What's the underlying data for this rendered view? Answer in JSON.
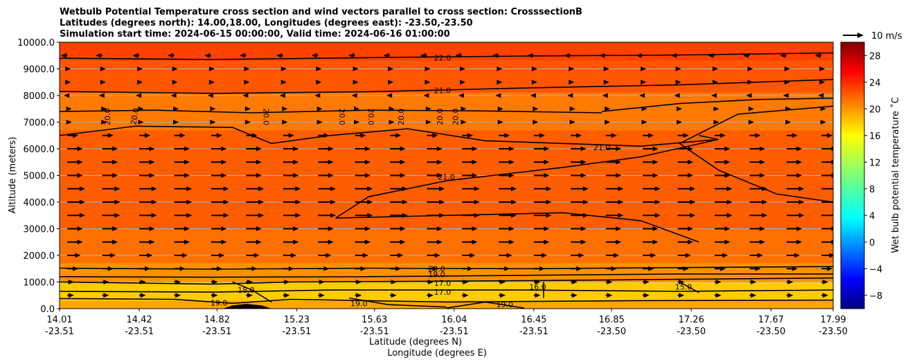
{
  "chart_data": {
    "type": "heatmap",
    "title_lines": [
      "Wetbulb Potential Temperature cross section and wind vectors parallel to cross section: CrosssectionB",
      "Latitudes (degrees north): 14.00,18.00, Longitudes (degrees east): -23.50,-23.50",
      "Simulation start time: 2024-06-15 00:00:00, Valid time: 2024-06-16 01:00:00"
    ],
    "xlabel": "Latitude (degrees N)",
    "xlabel2": "Longitude (degrees E)",
    "ylabel": "Altitude (meters)",
    "xlim": [
      14.01,
      17.99
    ],
    "ylim": [
      0,
      10000
    ],
    "x_ticks": [
      {
        "lat": "14.01",
        "lon": "-23.51",
        "value": 14.01
      },
      {
        "lat": "14.42",
        "lon": "-23.51",
        "value": 14.42
      },
      {
        "lat": "14.82",
        "lon": "-23.51",
        "value": 14.82
      },
      {
        "lat": "15.23",
        "lon": "-23.51",
        "value": 15.23
      },
      {
        "lat": "15.63",
        "lon": "-23.51",
        "value": 15.63
      },
      {
        "lat": "16.04",
        "lon": "-23.51",
        "value": 16.04
      },
      {
        "lat": "16.45",
        "lon": "-23.51",
        "value": 16.45
      },
      {
        "lat": "16.85",
        "lon": "-23.50",
        "value": 16.85
      },
      {
        "lat": "17.26",
        "lon": "-23.50",
        "value": 17.26
      },
      {
        "lat": "17.67",
        "lon": "-23.50",
        "value": 17.67
      },
      {
        "lat": "17.99",
        "lon": "-23.50",
        "value": 17.99
      }
    ],
    "y_ticks": [
      {
        "label": "0.0",
        "value": 0
      },
      {
        "label": "1000.0",
        "value": 1000
      },
      {
        "label": "2000.0",
        "value": 2000
      },
      {
        "label": "3000.0",
        "value": 3000
      },
      {
        "label": "4000.0",
        "value": 4000
      },
      {
        "label": "5000.0",
        "value": 5000
      },
      {
        "label": "6000.0",
        "value": 6000
      },
      {
        "label": "7000.0",
        "value": 7000
      },
      {
        "label": "8000.0",
        "value": 8000
      },
      {
        "label": "9000.0",
        "value": 9000
      },
      {
        "label": "10000.0",
        "value": 10000
      }
    ],
    "grid": "horizontal",
    "colorbar": {
      "label": "Wet bulb potential temperature ˚C",
      "range": [
        -10,
        30
      ],
      "colormap": "jet",
      "ticks": [
        {
          "label": "−8",
          "value": -8
        },
        {
          "label": "−4",
          "value": -4
        },
        {
          "label": "0",
          "value": 0
        },
        {
          "label": "4",
          "value": 4
        },
        {
          "label": "8",
          "value": 8
        },
        {
          "label": "12",
          "value": 12
        },
        {
          "label": "16",
          "value": 16
        },
        {
          "label": "20",
          "value": 20
        },
        {
          "label": "24",
          "value": 24
        },
        {
          "label": "28",
          "value": 28
        }
      ]
    },
    "quiver_key": {
      "label": "10 m/s",
      "speed": 10
    },
    "field_bands": [
      {
        "alt": [
          0,
          300
        ],
        "value": 18.5
      },
      {
        "alt": [
          300,
          1000
        ],
        "value": 17.0
      },
      {
        "alt": [
          1000,
          1700
        ],
        "value": 19.3
      },
      {
        "alt": [
          1700,
          3000
        ],
        "value": 20.6
      },
      {
        "alt": [
          3000,
          6700
        ],
        "value": 21.3
      },
      {
        "alt": [
          6700,
          8100
        ],
        "value": 20.2
      },
      {
        "alt": [
          8100,
          9300
        ],
        "value": 21.6
      },
      {
        "alt": [
          9300,
          10000
        ],
        "value": 22.4
      }
    ],
    "contours": [
      {
        "level": "22.0",
        "points": [
          [
            14.01,
            9400
          ],
          [
            14.8,
            9350
          ],
          [
            15.6,
            9420
          ],
          [
            16.4,
            9480
          ],
          [
            17.2,
            9520
          ],
          [
            17.99,
            9600
          ]
        ],
        "label_at": [
          15.98,
          9420
        ]
      },
      {
        "level": "21.0",
        "points": [
          [
            14.01,
            8150
          ],
          [
            14.8,
            8080
          ],
          [
            15.6,
            8140
          ],
          [
            16.4,
            8280
          ],
          [
            17.2,
            8400
          ],
          [
            17.99,
            8600
          ]
        ],
        "label_at": [
          15.98,
          8200
        ]
      },
      {
        "level": "20.0",
        "points": [
          [
            14.01,
            7400
          ],
          [
            14.5,
            7450
          ],
          [
            15.0,
            7350
          ],
          [
            15.6,
            7450
          ],
          [
            16.2,
            7420
          ],
          [
            16.8,
            7350
          ]
        ],
        "label_at": null
      },
      {
        "level": "20.0",
        "points": [
          [
            14.01,
            6500
          ],
          [
            14.4,
            6850
          ],
          [
            14.9,
            6800
          ],
          [
            15.1,
            6200
          ],
          [
            15.4,
            6500
          ],
          [
            15.8,
            6750
          ],
          [
            16.2,
            6300
          ],
          [
            16.6,
            6200
          ],
          [
            17.0,
            6100
          ],
          [
            17.4,
            6350
          ]
        ],
        "label_at": null
      },
      {
        "level": "21.0",
        "points": [
          [
            15.43,
            3400
          ],
          [
            15.6,
            4200
          ],
          [
            16.0,
            4800
          ],
          [
            16.6,
            5300
          ],
          [
            17.0,
            5700
          ],
          [
            17.4,
            6350
          ],
          [
            17.3,
            6500
          ]
        ],
        "label_at": [
          16.8,
          6050
        ]
      },
      {
        "level": "21.0",
        "points": [
          [
            15.43,
            3400
          ],
          [
            16.0,
            3500
          ],
          [
            16.6,
            3600
          ],
          [
            17.0,
            3300
          ],
          [
            17.3,
            2500
          ]
        ],
        "label_at": [
          16.0,
          4950
        ]
      },
      {
        "level": "20.0",
        "points": [
          [
            16.8,
            7400
          ],
          [
            17.2,
            7700
          ],
          [
            17.6,
            7850
          ],
          [
            17.99,
            7900
          ]
        ],
        "label_at": null
      },
      {
        "level": "20.0",
        "points": [
          [
            17.99,
            4000
          ],
          [
            17.7,
            4300
          ],
          [
            17.4,
            5200
          ],
          [
            17.2,
            6200
          ],
          [
            17.5,
            7300
          ],
          [
            17.99,
            7600
          ]
        ],
        "label_at": null
      },
      {
        "level": "20.0",
        "points": [
          [
            14.01,
            1520
          ],
          [
            14.8,
            1480
          ],
          [
            15.6,
            1520
          ],
          [
            16.4,
            1500
          ],
          [
            17.2,
            1540
          ],
          [
            17.99,
            1580
          ]
        ],
        "label_at": [
          15.95,
          1500
        ]
      },
      {
        "level": "19.0",
        "points": [
          [
            14.01,
            1200
          ],
          [
            14.8,
            1180
          ],
          [
            15.6,
            1200
          ],
          [
            16.4,
            1250
          ],
          [
            17.2,
            1300
          ],
          [
            17.99,
            1300
          ]
        ],
        "label_at": [
          15.95,
          1290
        ]
      },
      {
        "level": "17.0",
        "points": [
          [
            14.01,
            1000
          ],
          [
            14.8,
            920
          ],
          [
            15.2,
            1000
          ],
          [
            16.4,
            1050
          ],
          [
            17.2,
            1100
          ],
          [
            17.99,
            1150
          ]
        ],
        "label_at": [
          15.98,
          960
        ]
      },
      {
        "level": "17.0",
        "points": [
          [
            14.01,
            650
          ],
          [
            14.8,
            620
          ],
          [
            15.4,
            700
          ],
          [
            16.4,
            700
          ],
          [
            17.2,
            650
          ],
          [
            17.99,
            700
          ]
        ],
        "label_at": [
          15.98,
          620
        ]
      },
      {
        "level": "19.0",
        "points": [
          [
            14.01,
            380
          ],
          [
            14.6,
            350
          ],
          [
            14.9,
            200
          ],
          [
            15.2,
            350
          ],
          [
            16.0,
            250
          ],
          [
            17.0,
            300
          ],
          [
            17.99,
            320
          ]
        ],
        "label_at": [
          14.83,
          220
        ]
      },
      {
        "level": "18.0",
        "points": [
          [
            14.9,
            1000
          ],
          [
            15.0,
            700
          ],
          [
            15.1,
            250
          ]
        ],
        "label_at": [
          14.97,
          700
        ]
      },
      {
        "level": "19.0",
        "points": [
          [
            15.5,
            400
          ],
          [
            15.7,
            150
          ],
          [
            16.0,
            60
          ]
        ],
        "label_at": [
          15.55,
          200
        ]
      },
      {
        "level": "19.0",
        "points": [
          [
            16.0,
            20
          ],
          [
            16.2,
            250
          ],
          [
            16.4,
            20
          ]
        ],
        "label_at": [
          16.3,
          150
        ]
      },
      {
        "level": "16.0",
        "points": [
          [
            16.5,
            1000
          ],
          [
            16.5,
            400
          ]
        ],
        "label_at": [
          16.47,
          820
        ]
      },
      {
        "level": "15.0",
        "points": [
          [
            17.2,
            1000
          ],
          [
            17.3,
            600
          ]
        ],
        "label_at": [
          17.22,
          820
        ]
      }
    ],
    "contour_extra_labels": [
      {
        "text": "20.0",
        "at": [
          14.27,
          7200
        ],
        "rotate": -90
      },
      {
        "text": "20.0",
        "at": [
          14.41,
          7200
        ],
        "rotate": -80
      },
      {
        "text": "20.0",
        "at": [
          15.06,
          7200
        ],
        "rotate": 90
      },
      {
        "text": "20.0",
        "at": [
          15.45,
          7200
        ],
        "rotate": 90
      },
      {
        "text": "20.0",
        "at": [
          15.6,
          7200
        ],
        "rotate": 90
      },
      {
        "text": "20.0",
        "at": [
          15.78,
          7200
        ],
        "rotate": -90
      },
      {
        "text": "20.0",
        "at": [
          15.98,
          7200
        ],
        "rotate": -90
      },
      {
        "text": "20.0",
        "at": [
          16.06,
          7200
        ],
        "rotate": -90
      }
    ],
    "wind_rows": [
      {
        "alt": 9500,
        "u": -3
      },
      {
        "alt": 9000,
        "u": 1
      },
      {
        "alt": 8500,
        "u": 1
      },
      {
        "alt": 8000,
        "u": -1
      },
      {
        "alt": 7500,
        "u": 2
      },
      {
        "alt": 7000,
        "u": 2
      },
      {
        "alt": 6500,
        "u": 5
      },
      {
        "alt": 6000,
        "u": 7
      },
      {
        "alt": 5500,
        "u": 7
      },
      {
        "alt": 5000,
        "u": 7
      },
      {
        "alt": 4500,
        "u": 8
      },
      {
        "alt": 4000,
        "u": 8
      },
      {
        "alt": 3500,
        "u": 8
      },
      {
        "alt": 3000,
        "u": 7
      },
      {
        "alt": 2500,
        "u": 7
      },
      {
        "alt": 2000,
        "u": 6
      },
      {
        "alt": 1500,
        "u": 5
      },
      {
        "alt": 1000,
        "u": 3
      },
      {
        "alt": 500,
        "u": 3
      }
    ],
    "wind_x_positions": [
      14.05,
      14.23,
      14.42,
      14.6,
      14.79,
      14.97,
      15.16,
      15.34,
      15.53,
      15.71,
      15.9,
      16.08,
      16.27,
      16.45,
      16.64,
      16.82,
      17.01,
      17.19,
      17.38,
      17.56,
      17.75,
      17.93
    ],
    "terrain": [
      [
        14.85,
        0
      ],
      [
        14.9,
        120
      ],
      [
        14.97,
        180
      ],
      [
        15.05,
        120
      ],
      [
        15.1,
        0
      ]
    ]
  }
}
